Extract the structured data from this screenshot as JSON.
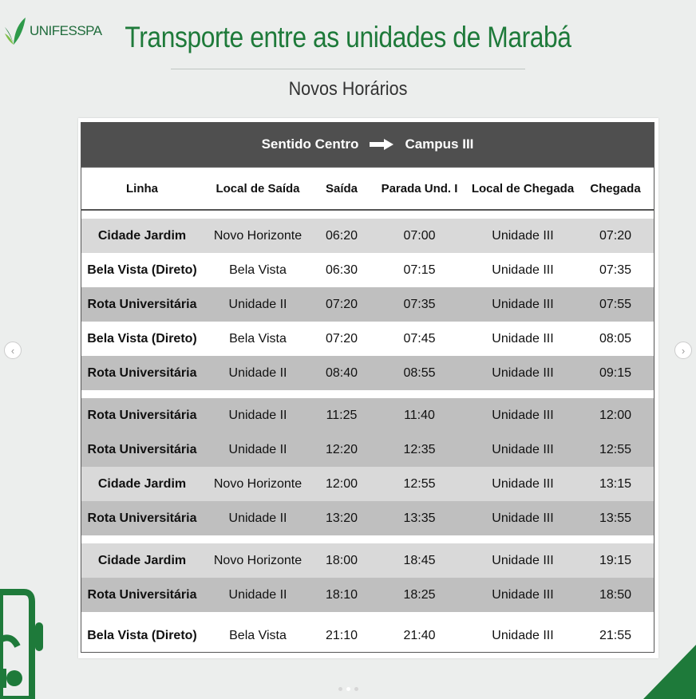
{
  "logo": {
    "text": "UNIFESSPA"
  },
  "title": "Transporte entre as unidades de Marabá",
  "subtitle": "Novos Horários",
  "table": {
    "direction_from": "Sentido Centro",
    "direction_to": "Campus III",
    "headers": [
      "Linha",
      "Local de Saída",
      "Saída",
      "Parada Und. I",
      "Local de Chegada",
      "Chegada"
    ],
    "rows": [
      [
        "Cidade Jardim",
        "Novo Horizonte",
        "06:20",
        "07:00",
        "Unidade III",
        "07:20"
      ],
      [
        "Bela Vista (Direto)",
        "Bela Vista",
        "06:30",
        "07:15",
        "Unidade III",
        "07:35"
      ],
      [
        "Rota Universitária",
        "Unidade II",
        "07:20",
        "07:35",
        "Unidade III",
        "07:55"
      ],
      [
        "Bela Vista (Direto)",
        "Bela Vista",
        "07:20",
        "07:45",
        "Unidade III",
        "08:05"
      ],
      [
        "Rota Universitária",
        "Unidade II",
        "08:40",
        "08:55",
        "Unidade III",
        "09:15"
      ],
      [
        "Rota Universitária",
        "Unidade II",
        "11:25",
        "11:40",
        "Unidade III",
        "12:00"
      ],
      [
        "Rota Universitária",
        "Unidade II",
        "12:20",
        "12:35",
        "Unidade III",
        "12:55"
      ],
      [
        "Cidade Jardim",
        "Novo Horizonte",
        "12:00",
        "12:55",
        "Unidade III",
        "13:15"
      ],
      [
        "Rota Universitária",
        "Unidade II",
        "13:20",
        "13:35",
        "Unidade III",
        "13:55"
      ],
      [
        "Cidade Jardim",
        "Novo Horizonte",
        "18:00",
        "18:45",
        "Unidade III",
        "19:15"
      ],
      [
        "Rota Universitária",
        "Unidade II",
        "18:10",
        "18:25",
        "Unidade III",
        "18:50"
      ],
      [
        "Bela Vista (Direto)",
        "Bela Vista",
        "21:10",
        "21:40",
        "Unidade III",
        "21:55"
      ]
    ]
  },
  "colors": {
    "brand_green": "#1e7a3a",
    "band": "#4f4f4f",
    "row_light": "#d9d9d9",
    "row_dark": "#bfbfbf"
  },
  "carousel": {
    "prev_icon": "chevron-left-icon",
    "next_icon": "chevron-right-icon",
    "slides": 3,
    "active": 2
  }
}
